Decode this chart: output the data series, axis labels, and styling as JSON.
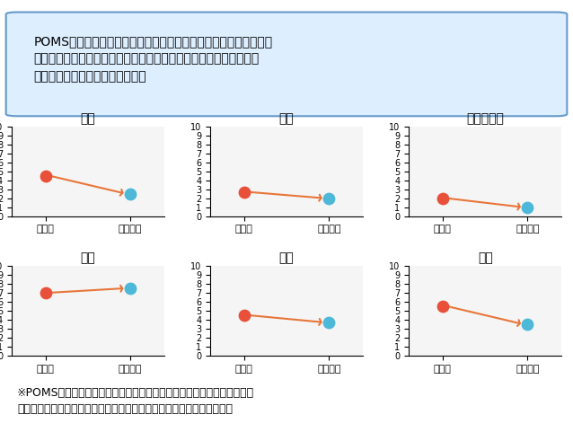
{
  "header_text": "POMS心理テストを実施すると、泣く前と後で混乱および緊張・不\n安の尺度が改善。これは自覚的には「スッキリした」という気分に\nよく対応するものと解釈される。",
  "footer_text": "※POMSテストとは、気分の状態を「緊張・不安」「活力」「抑圧」「疲\n労」「怒り」「混乱」という六つの尺度で測る心理テストのことです。",
  "subplots": [
    {
      "title": "緊張",
      "before": 4.5,
      "after": 2.5
    },
    {
      "title": "うつ",
      "before": 2.7,
      "after": 2.0
    },
    {
      "title": "敵意・怒り",
      "before": 2.0,
      "after": 1.0
    },
    {
      "title": "活力",
      "before": 7.0,
      "after": 7.5
    },
    {
      "title": "疲労",
      "before": 4.5,
      "after": 3.7
    },
    {
      "title": "混乱",
      "before": 5.5,
      "after": 3.5
    }
  ],
  "x_labels": [
    "泣く前",
    "泣いた後"
  ],
  "y_min": 0,
  "y_max": 10,
  "y_ticks": [
    0,
    1,
    2,
    3,
    4,
    5,
    6,
    7,
    8,
    9,
    10
  ],
  "dot_before_color": "#E8503A",
  "dot_after_color": "#4DB8D8",
  "arrow_color": "#E8763A",
  "dot_size": 80,
  "bg_color": "#EFEFEF",
  "subplot_bg": "#F5F5F5",
  "title_fontsize": 10,
  "tick_fontsize": 7,
  "xlabel_fontsize": 8,
  "header_fontsize": 10,
  "footer_fontsize": 9,
  "header_bg": "#DDEEFF",
  "header_border": "#6699CC"
}
